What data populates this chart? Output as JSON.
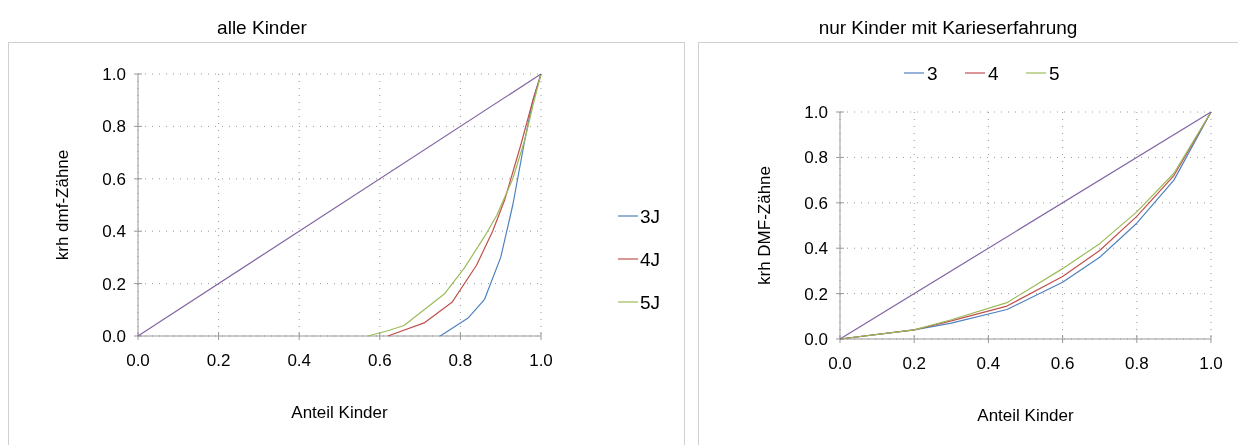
{
  "chart_data": [
    {
      "type": "line",
      "title": "alle Kinder",
      "xlabel": "Anteil Kinder",
      "ylabel": "krh dmf-Zähne",
      "xlim": [
        0,
        1
      ],
      "ylim": [
        0,
        1
      ],
      "xticks": [
        {
          "value": 0,
          "label": "0.0"
        },
        {
          "value": 0.2,
          "label": "0.2"
        },
        {
          "value": 0.4,
          "label": "0.4"
        },
        {
          "value": 0.6,
          "label": "0.6"
        },
        {
          "value": 0.8,
          "label": "0.8"
        },
        {
          "value": 1,
          "label": "1.0"
        }
      ],
      "yticks": [
        {
          "value": 0,
          "label": "0.0"
        },
        {
          "value": 0.2,
          "label": "0.2"
        },
        {
          "value": 0.4,
          "label": "0.4"
        },
        {
          "value": 0.6,
          "label": "0.6"
        },
        {
          "value": 0.8,
          "label": "0.8"
        },
        {
          "value": 1,
          "label": "1.0"
        }
      ],
      "grid": true,
      "legend": "right",
      "series": [
        {
          "name": "3J",
          "color": "#4f81bd",
          "x": [
            0.75,
            0.82,
            0.86,
            0.9,
            0.93,
            0.96,
            0.98,
            1
          ],
          "values": [
            0,
            0.07,
            0.14,
            0.3,
            0.5,
            0.75,
            0.9,
            1
          ]
        },
        {
          "name": "4J",
          "color": "#c0504d",
          "x": [
            0.62,
            0.71,
            0.78,
            0.84,
            0.88,
            0.91,
            0.95,
            0.98,
            1
          ],
          "values": [
            0,
            0.05,
            0.13,
            0.27,
            0.4,
            0.52,
            0.73,
            0.9,
            1
          ]
        },
        {
          "name": "5J",
          "color": "#9bbb59",
          "x": [
            0.57,
            0.62,
            0.66,
            0.71,
            0.76,
            0.81,
            0.86,
            0.89,
            0.93,
            0.96,
            0.98,
            1
          ],
          "values": [
            0,
            0.02,
            0.04,
            0.1,
            0.16,
            0.26,
            0.38,
            0.46,
            0.6,
            0.75,
            0.88,
            1
          ]
        },
        {
          "color": "#8064a2",
          "x": [
            0,
            1
          ],
          "values": [
            0,
            1
          ]
        }
      ]
    },
    {
      "type": "line",
      "title": "nur Kinder mit Karieserfahrung",
      "xlabel": "Anteil Kinder",
      "ylabel": "krh DMF-Zähne",
      "xlim": [
        0,
        1
      ],
      "ylim": [
        0,
        1
      ],
      "xticks": [
        {
          "value": 0,
          "label": "0.0"
        },
        {
          "value": 0.2,
          "label": "0.2"
        },
        {
          "value": 0.4,
          "label": "0.4"
        },
        {
          "value": 0.6,
          "label": "0.6"
        },
        {
          "value": 0.8,
          "label": "0.8"
        },
        {
          "value": 1,
          "label": "1.0"
        }
      ],
      "yticks": [
        {
          "value": 0,
          "label": "0.0"
        },
        {
          "value": 0.2,
          "label": "0.2"
        },
        {
          "value": 0.4,
          "label": "0.4"
        },
        {
          "value": 0.6,
          "label": "0.6"
        },
        {
          "value": 0.8,
          "label": "0.8"
        },
        {
          "value": 1,
          "label": "1.0"
        }
      ],
      "grid": true,
      "legend": "top",
      "series": [
        {
          "name": "3",
          "color": "#4f81bd",
          "x": [
            0,
            0.2,
            0.3,
            0.45,
            0.6,
            0.7,
            0.8,
            0.9,
            1
          ],
          "values": [
            0,
            0.04,
            0.07,
            0.13,
            0.25,
            0.36,
            0.51,
            0.7,
            1
          ]
        },
        {
          "name": "4",
          "color": "#c0504d",
          "x": [
            0,
            0.2,
            0.3,
            0.45,
            0.6,
            0.7,
            0.8,
            0.9,
            1
          ],
          "values": [
            0,
            0.04,
            0.08,
            0.145,
            0.275,
            0.39,
            0.54,
            0.72,
            1
          ]
        },
        {
          "name": "5",
          "color": "#9bbb59",
          "x": [
            0,
            0.2,
            0.3,
            0.45,
            0.6,
            0.7,
            0.8,
            0.9,
            1
          ],
          "values": [
            0,
            0.04,
            0.085,
            0.16,
            0.31,
            0.42,
            0.56,
            0.73,
            1
          ]
        },
        {
          "color": "#8064a2",
          "x": [
            0,
            1
          ],
          "values": [
            0,
            1
          ]
        }
      ]
    }
  ]
}
